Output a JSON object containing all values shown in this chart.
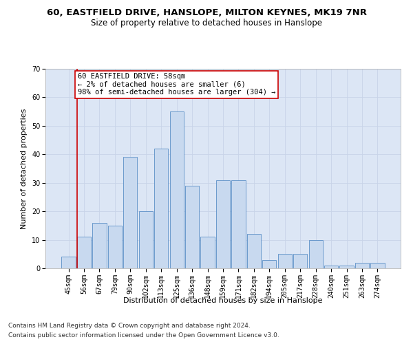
{
  "title1": "60, EASTFIELD DRIVE, HANSLOPE, MILTON KEYNES, MK19 7NR",
  "title2": "Size of property relative to detached houses in Hanslope",
  "xlabel": "Distribution of detached houses by size in Hanslope",
  "ylabel": "Number of detached properties",
  "categories": [
    "45sqm",
    "56sqm",
    "67sqm",
    "79sqm",
    "90sqm",
    "102sqm",
    "113sqm",
    "125sqm",
    "136sqm",
    "148sqm",
    "159sqm",
    "171sqm",
    "182sqm",
    "194sqm",
    "205sqm",
    "217sqm",
    "228sqm",
    "240sqm",
    "251sqm",
    "263sqm",
    "274sqm"
  ],
  "values": [
    4,
    11,
    16,
    15,
    39,
    20,
    42,
    55,
    29,
    11,
    31,
    31,
    12,
    3,
    5,
    5,
    10,
    1,
    1,
    2,
    2
  ],
  "bar_color": "#c8d9ef",
  "bar_edge_color": "#5b8fc7",
  "annotation_text": "60 EASTFIELD DRIVE: 58sqm\n← 2% of detached houses are smaller (6)\n98% of semi-detached houses are larger (304) →",
  "annotation_box_color": "#ffffff",
  "annotation_box_edge_color": "#cc0000",
  "vline_color": "#cc0000",
  "vline_x": 1,
  "ylim": [
    0,
    70
  ],
  "yticks": [
    0,
    10,
    20,
    30,
    40,
    50,
    60,
    70
  ],
  "grid_color": "#c8d4e8",
  "bg_color": "#dce6f5",
  "footer1": "Contains HM Land Registry data © Crown copyright and database right 2024.",
  "footer2": "Contains public sector information licensed under the Open Government Licence v3.0.",
  "title1_fontsize": 9.5,
  "title2_fontsize": 8.5,
  "axis_label_fontsize": 8,
  "tick_fontsize": 7,
  "annotation_fontsize": 7.5,
  "footer_fontsize": 6.5
}
